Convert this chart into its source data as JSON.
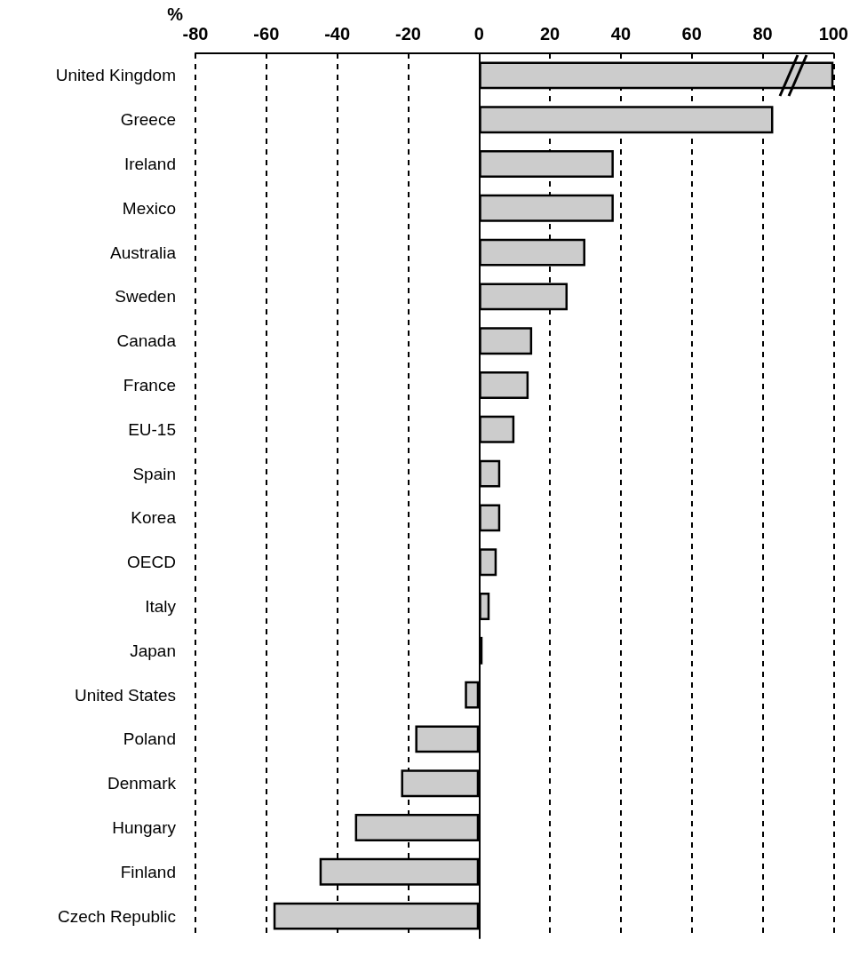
{
  "chart_data": {
    "type": "bar",
    "orientation": "horizontal",
    "xlabel": "%",
    "categories": [
      "United Kingdom",
      "Greece",
      "Ireland",
      "Mexico",
      "Australia",
      "Sweden",
      "Canada",
      "France",
      "EU-15",
      "Spain",
      "Korea",
      "OECD",
      "Italy",
      "Japan",
      "United States",
      "Poland",
      "Denmark",
      "Hungary",
      "Finland",
      "Czech Republic"
    ],
    "values": [
      100,
      83,
      38,
      38,
      30,
      25,
      15,
      14,
      10,
      6,
      6,
      5,
      3,
      1,
      -4,
      -18,
      -22,
      -35,
      -45,
      -58
    ],
    "color": "#cccccc",
    "xlim": [
      -80,
      100
    ],
    "xticks": [
      -80,
      -60,
      -40,
      -20,
      0,
      20,
      40,
      60,
      80,
      100
    ],
    "grid": "x"
  }
}
